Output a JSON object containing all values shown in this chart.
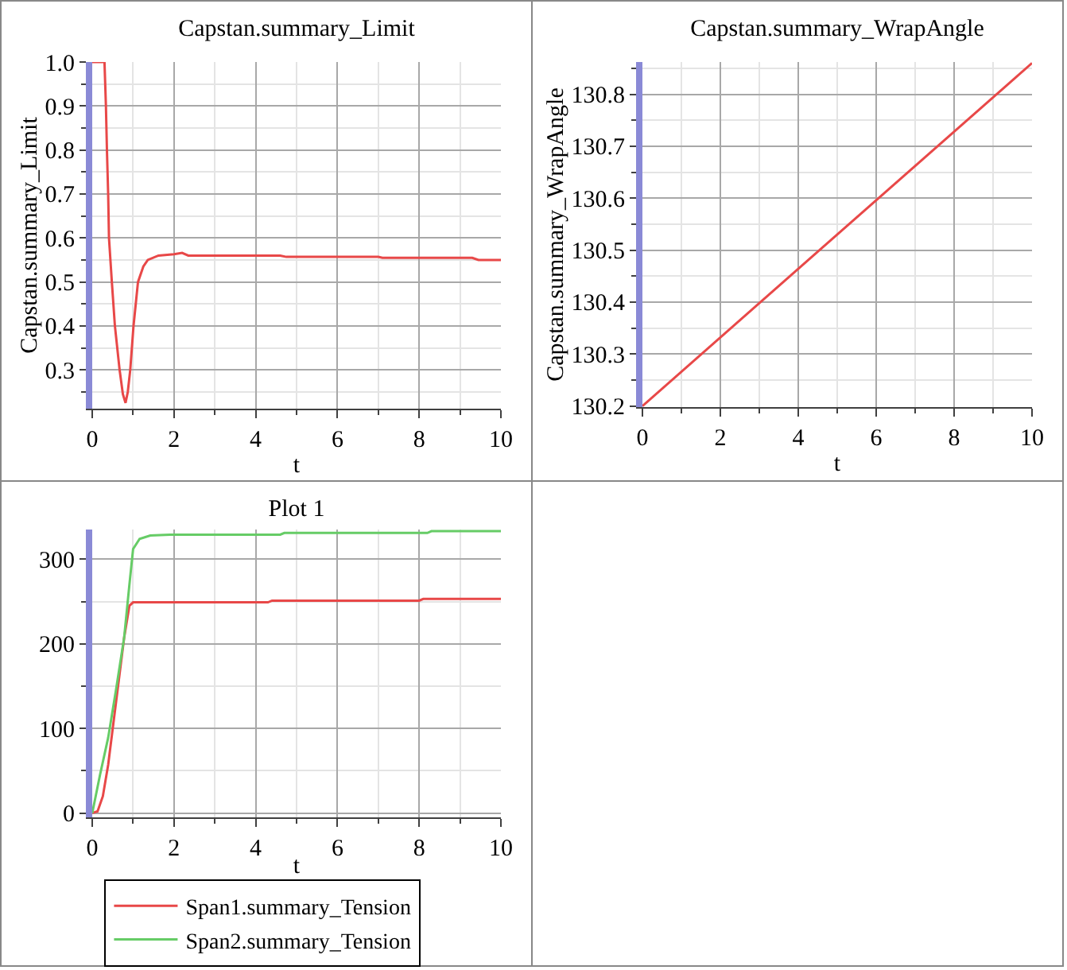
{
  "chart_data": [
    {
      "type": "line",
      "title": "Capstan.summary_Limit",
      "xlabel": "t",
      "ylabel": "Capstan.summary_Limit",
      "x": [
        0,
        0.3,
        0.335,
        0.36,
        0.39,
        0.41,
        0.48,
        0.555,
        0.67,
        0.75,
        0.815,
        0.87,
        0.93,
        1.01,
        1.12,
        1.25,
        1.36,
        1.62,
        2.0,
        2.2,
        2.35,
        4.6,
        4.75,
        7.0,
        7.1,
        9.3,
        9.45,
        10
      ],
      "series": [
        {
          "color": "#e84848",
          "values": [
            1.0,
            1.0,
            0.9,
            0.8,
            0.7,
            0.6,
            0.5,
            0.4,
            0.3,
            0.245,
            0.225,
            0.25,
            0.3,
            0.4,
            0.5,
            0.535,
            0.55,
            0.56,
            0.563,
            0.566,
            0.56,
            0.56,
            0.557,
            0.557,
            0.555,
            0.555,
            0.55,
            0.55
          ]
        }
      ],
      "xlim": [
        0,
        10
      ],
      "xticks": [
        0,
        2,
        4,
        6,
        8,
        10
      ],
      "ylim": [
        0.212,
        1.0
      ],
      "yticks": [
        0.3,
        0.4,
        0.5,
        0.6,
        0.7,
        0.8,
        0.9,
        {
          "value": 1.0,
          "label": "1.0"
        }
      ],
      "grid": true
    },
    {
      "type": "line",
      "title": "Capstan.summary_WrapAngle",
      "xlabel": "t",
      "ylabel": "Capstan.summary_WrapAngle",
      "x": [
        0,
        10
      ],
      "series": [
        {
          "color": "#e84848",
          "values": [
            130.2,
            130.86
          ]
        }
      ],
      "xlim": [
        0,
        10
      ],
      "xticks": [
        0,
        2,
        4,
        6,
        8,
        10
      ],
      "ylim": [
        130.198,
        130.862
      ],
      "yticks": [
        130.2,
        130.3,
        130.4,
        130.5,
        130.6,
        130.7,
        130.8
      ],
      "grid": true
    },
    {
      "type": "line",
      "title": "Plot 1",
      "xlabel": "t",
      "series": [
        {
          "name": "Span1.summary_Tension",
          "color": "#e84848",
          "x": [
            0,
            0.13,
            0.26,
            0.39,
            0.52,
            0.65,
            0.78,
            0.91,
            1.0,
            1.1,
            4.3,
            4.4,
            8.0,
            8.1,
            10
          ],
          "values": [
            0,
            2,
            20,
            57,
            107,
            157,
            207,
            245,
            249,
            249,
            249,
            251,
            251,
            253,
            253
          ]
        },
        {
          "name": "Span2.summary_Tension",
          "color": "#66cc66",
          "x": [
            0,
            0.19,
            0.39,
            0.58,
            0.78,
            0.91,
            1.0,
            1.16,
            1.42,
            1.9,
            4.6,
            4.7,
            8.2,
            8.3,
            10
          ],
          "values": [
            0,
            45,
            89,
            145,
            207,
            270,
            312,
            324,
            328,
            329,
            329,
            331,
            331,
            333,
            333
          ]
        }
      ],
      "xlim": [
        0,
        10
      ],
      "xticks": [
        0,
        2,
        4,
        6,
        8,
        10
      ],
      "ylim": [
        -5,
        335
      ],
      "yticks": [
        0,
        100,
        200,
        300
      ],
      "grid": true,
      "legend": "bottom"
    }
  ]
}
